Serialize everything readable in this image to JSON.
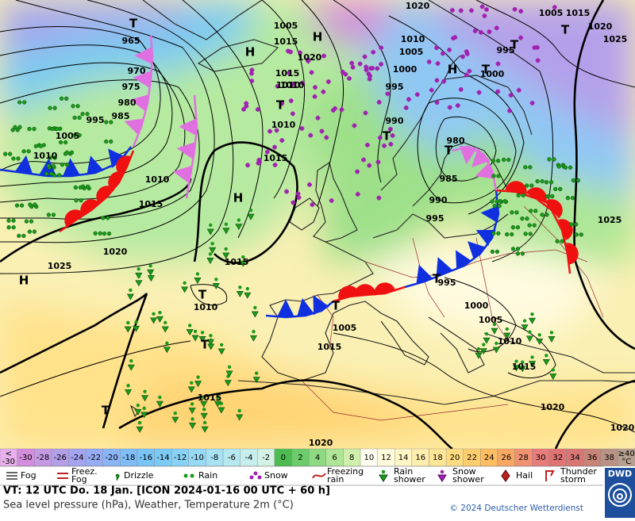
{
  "map": {
    "pressure_labels": [
      "965",
      "970",
      "975",
      "980",
      "985",
      "995",
      "1005",
      "1010",
      "1010",
      "1015",
      "1020",
      "1025",
      "1015",
      "1015",
      "1010",
      "1005",
      "1015",
      "1020",
      "1010",
      "1015",
      "995",
      "1000",
      "990",
      "1005",
      "1010",
      "1000",
      "985",
      "990",
      "995",
      "980",
      "1005",
      "1015",
      "1020",
      "1025",
      "1020",
      "1025",
      "1000",
      "995",
      "1005",
      "1010",
      "1015",
      "1020",
      "1020",
      "1010",
      "1015",
      "1005",
      "1010",
      "1015",
      "995",
      "1020"
    ],
    "center_labels": [
      "H",
      "T",
      "H",
      "T",
      "T",
      "T",
      "H",
      "H",
      "H",
      "T",
      "T",
      "T",
      "T",
      "T",
      "T",
      "T",
      "T"
    ]
  },
  "temperature_scale": {
    "below": [
      "<",
      "-30"
    ],
    "steps": [
      {
        "value": -30,
        "color": "#d48cdc"
      },
      {
        "value": -28,
        "color": "#c49ae2"
      },
      {
        "value": -26,
        "color": "#b39ee8"
      },
      {
        "value": -24,
        "color": "#a4a4f0"
      },
      {
        "value": -22,
        "color": "#96acf4"
      },
      {
        "value": -20,
        "color": "#8ab4f6"
      },
      {
        "value": -18,
        "color": "#80bcf8"
      },
      {
        "value": -16,
        "color": "#78c4f8"
      },
      {
        "value": -14,
        "color": "#7ccaf6"
      },
      {
        "value": -12,
        "color": "#88d2f6"
      },
      {
        "value": -10,
        "color": "#96daf6"
      },
      {
        "value": -8,
        "color": "#a6e2f4"
      },
      {
        "value": -6,
        "color": "#b6e8f0"
      },
      {
        "value": -4,
        "color": "#c6eeec"
      },
      {
        "value": -2,
        "color": "#d4f2e6"
      },
      {
        "value": 0,
        "color": "#4cbc50"
      },
      {
        "value": 2,
        "color": "#6ccc6c"
      },
      {
        "value": 4,
        "color": "#8eda82"
      },
      {
        "value": 6,
        "color": "#aee696"
      },
      {
        "value": 8,
        "color": "#cef0aa"
      },
      {
        "value": 10,
        "color": "#fffff2"
      },
      {
        "value": 12,
        "color": "#fffbdc"
      },
      {
        "value": 14,
        "color": "#fff6c6"
      },
      {
        "value": 16,
        "color": "#ffeeae"
      },
      {
        "value": 18,
        "color": "#ffe696"
      },
      {
        "value": 20,
        "color": "#ffdc80"
      },
      {
        "value": 22,
        "color": "#ffce6e"
      },
      {
        "value": 24,
        "color": "#ffbe60"
      },
      {
        "value": 26,
        "color": "#f8a862"
      },
      {
        "value": 28,
        "color": "#f09272"
      },
      {
        "value": 30,
        "color": "#e87c7a"
      },
      {
        "value": 32,
        "color": "#e07474"
      },
      {
        "value": 34,
        "color": "#d87674"
      },
      {
        "value": 36,
        "color": "#c88476"
      },
      {
        "value": 38,
        "color": "#b89284"
      }
    ],
    "above": [
      "≥40",
      "°C"
    ]
  },
  "weather_legend": [
    [
      "Fog"
    ],
    [
      "Freez.",
      "Fog"
    ],
    [
      "Drizzle"
    ],
    [
      "Rain"
    ],
    [
      "Snow"
    ],
    [
      "Freezing",
      "rain"
    ],
    [
      "Rain",
      "shower"
    ],
    [
      "Snow",
      "shower"
    ],
    [
      "Hail"
    ],
    [
      "Thunder",
      "storm"
    ]
  ],
  "footer": {
    "valid_time": "VT: 12 UTC Do.  18 Jan. [ICON 2024-01-16  00 UTC + 60 h]",
    "description": "Sea level pressure (hPa), Weather, Temperature 2m (°C)",
    "copyright": "© 2024 Deutscher Wetterdienst",
    "logo": "DWD"
  }
}
